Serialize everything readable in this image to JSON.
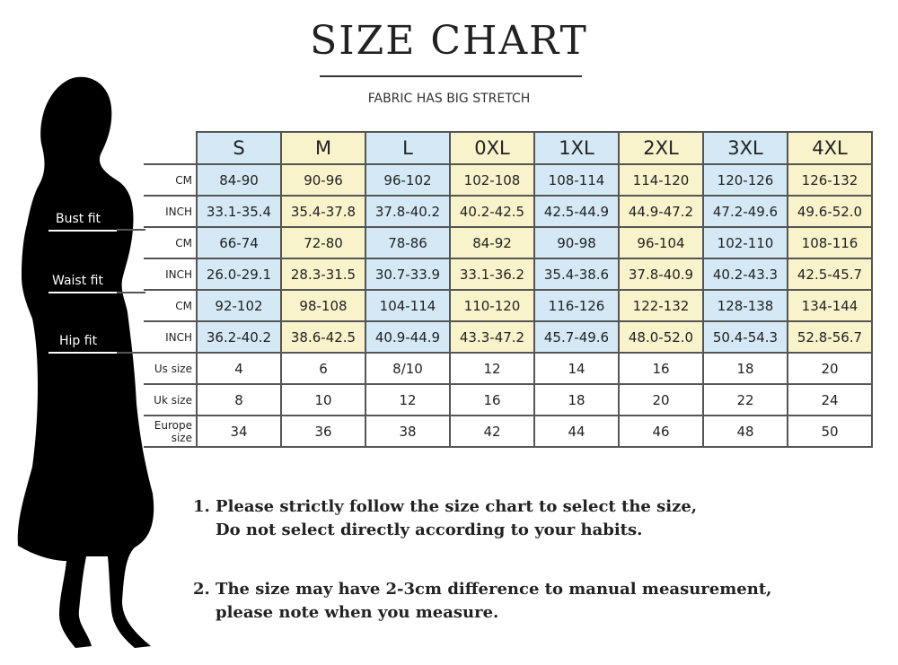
{
  "title": "SIZE CHART",
  "subtitle": "FABRIC HAS BIG STRETCH",
  "colors": {
    "blue": "#d4e9f5",
    "yellow": "#f8f3cb",
    "silhouette": "#000000"
  },
  "figure_labels": {
    "bust": "Bust fit",
    "waist": "Waist fit",
    "hip": "Hip fit"
  },
  "table": {
    "sizes": [
      "S",
      "M",
      "L",
      "0XL",
      "1XL",
      "2XL",
      "3XL",
      "4XL"
    ],
    "rows": [
      {
        "label": "CM",
        "values": [
          "84-90",
          "90-96",
          "96-102",
          "102-108",
          "108-114",
          "114-120",
          "120-126",
          "126-132"
        ]
      },
      {
        "label": "INCH",
        "values": [
          "33.1-35.4",
          "35.4-37.8",
          "37.8-40.2",
          "40.2-42.5",
          "42.5-44.9",
          "44.9-47.2",
          "47.2-49.6",
          "49.6-52.0"
        ]
      },
      {
        "label": "CM",
        "values": [
          "66-74",
          "72-80",
          "78-86",
          "84-92",
          "90-98",
          "96-104",
          "102-110",
          "108-116"
        ]
      },
      {
        "label": "INCH",
        "values": [
          "26.0-29.1",
          "28.3-31.5",
          "30.7-33.9",
          "33.1-36.2",
          "35.4-38.6",
          "37.8-40.9",
          "40.2-43.3",
          "42.5-45.7"
        ]
      },
      {
        "label": "CM",
        "values": [
          "92-102",
          "98-108",
          "104-114",
          "110-120",
          "116-126",
          "122-132",
          "128-138",
          "134-144"
        ]
      },
      {
        "label": "INCH",
        "values": [
          "36.2-40.2",
          "38.6-42.5",
          "40.9-44.9",
          "43.3-47.2",
          "45.7-49.6",
          "48.0-52.0",
          "50.4-54.3",
          "52.8-56.7"
        ]
      },
      {
        "label": "Us size",
        "values": [
          "4",
          "6",
          "8/10",
          "12",
          "14",
          "16",
          "18",
          "20"
        ]
      },
      {
        "label": "Uk size",
        "values": [
          "8",
          "10",
          "12",
          "16",
          "18",
          "20",
          "22",
          "24"
        ]
      },
      {
        "label": "Europe size",
        "values": [
          "34",
          "36",
          "38",
          "42",
          "44",
          "46",
          "48",
          "50"
        ]
      }
    ]
  },
  "notes": [
    {
      "line1": "1.  Please strictly follow the size chart to select the size,",
      "line2": "Do not select directly according to your habits."
    },
    {
      "line1": "2.  The size may have 2-3cm difference  to manual measurement,",
      "line2": "please note when you measure."
    }
  ]
}
